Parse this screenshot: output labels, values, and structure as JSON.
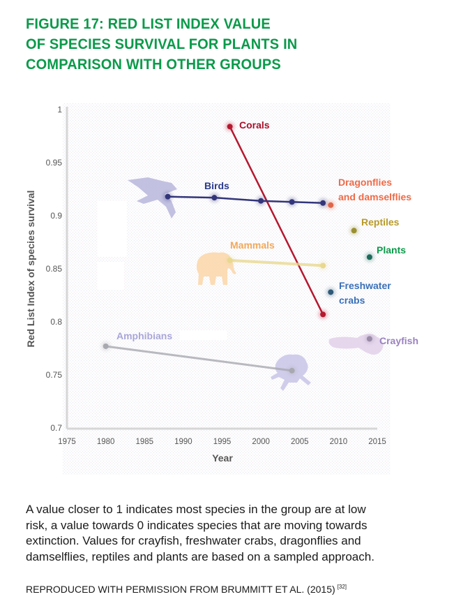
{
  "title_lines": [
    "FIGURE 17: RED LIST INDEX VALUE",
    "OF SPECIES SURVIVAL FOR PLANTS IN",
    "COMPARISON WITH OTHER GROUPS"
  ],
  "caption": "A value closer to 1 indicates most species in the group are at low risk, a value towards 0 indicates species that are moving towards extinction. Values for crayfish, freshwater crabs, dragonflies and damselflies, reptiles and plants are based on a sampled approach.",
  "source": {
    "text": "REPRODUCED WITH PERMISSION FROM BRUMMITT ET AL. (2015)",
    "ref": "[32]"
  },
  "colors": {
    "title": "#0a9a4a",
    "axis": "#d4d4d4",
    "tick_text": "#555555"
  },
  "chart_data": {
    "type": "line",
    "title": "Red List Index value of species survival for plants in comparison with other groups",
    "xlabel": "Year",
    "ylabel": "Red List Index of species survival",
    "xlim": [
      1975,
      2015
    ],
    "ylim": [
      0.7,
      1.0
    ],
    "x_ticks": [
      "1975",
      "1980",
      "1985",
      "1990",
      "1995",
      "2000",
      "2005",
      "2010",
      "2015"
    ],
    "y_ticks": [
      "0.7",
      "0.75",
      "0.8",
      "0.85",
      "0.9",
      "0.95",
      "1"
    ],
    "grid": false,
    "legend": "inline labels next to series",
    "series": [
      {
        "name": "Corals",
        "label_lines": [
          "Corals"
        ],
        "color": "#b5182f",
        "label_color": "#a8112a",
        "x": [
          1996,
          2008
        ],
        "y": [
          0.984,
          0.807
        ],
        "icon": null
      },
      {
        "name": "Birds",
        "label_lines": [
          "Birds"
        ],
        "color": "#33357a",
        "label_color": "#2a3a8c",
        "x": [
          1988,
          1994,
          2000,
          2004,
          2008
        ],
        "y": [
          0.918,
          0.917,
          0.914,
          0.913,
          0.912
        ],
        "icon": "bird-silhouette-icon"
      },
      {
        "name": "Dragonflies and damselflies",
        "label_lines": [
          "Dragonflies",
          "and damselflies"
        ],
        "color": "#e0664a",
        "label_color": "#ef6a47",
        "x": [
          2009
        ],
        "y": [
          0.91
        ],
        "icon": null
      },
      {
        "name": "Reptiles",
        "label_lines": [
          "Reptiles"
        ],
        "color": "#9a9030",
        "label_color": "#b89a2a",
        "x": [
          2012
        ],
        "y": [
          0.886
        ],
        "icon": null
      },
      {
        "name": "Mammals",
        "label_lines": [
          "Mammals"
        ],
        "color": "#e8d890",
        "label_color": "#f2a95a",
        "x": [
          1996,
          2008
        ],
        "y": [
          0.858,
          0.853
        ],
        "icon": "elephant-silhouette-icon"
      },
      {
        "name": "Plants",
        "label_lines": [
          "Plants"
        ],
        "color": "#1d6a5a",
        "label_color": "#0c9a4a",
        "x": [
          2014
        ],
        "y": [
          0.861
        ],
        "icon": null
      },
      {
        "name": "Freshwater crabs",
        "label_lines": [
          "Freshwater",
          "crabs"
        ],
        "color": "#2f5a78",
        "label_color": "#3a70b8",
        "x": [
          2009
        ],
        "y": [
          0.828
        ],
        "icon": null
      },
      {
        "name": "Crayfish",
        "label_lines": [
          "Crayfish"
        ],
        "color": "#9a8aa8",
        "label_color": "#9a82c0",
        "x": [
          2014
        ],
        "y": [
          0.784
        ],
        "icon": "crayfish-silhouette-icon"
      },
      {
        "name": "Amphibians",
        "label_lines": [
          "Amphibians"
        ],
        "color": "#a8a8b0",
        "label_color": "#a9a6d8",
        "x": [
          1980,
          2004
        ],
        "y": [
          0.777,
          0.754
        ],
        "icon": "frog-silhouette-icon"
      }
    ]
  }
}
